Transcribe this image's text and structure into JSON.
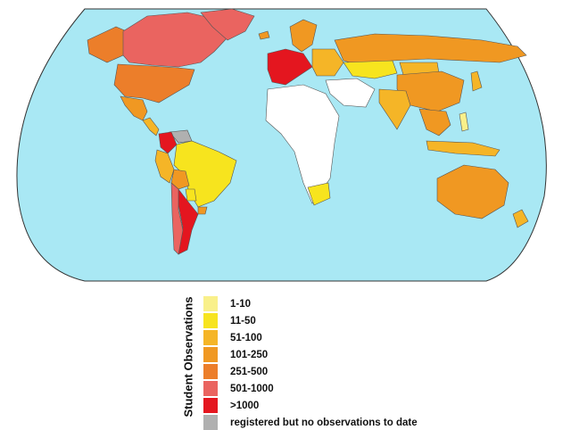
{
  "map": {
    "ocean_color": "#a9e8f4",
    "border_color": "#555555",
    "no_data_color": "#ffffff"
  },
  "legend": {
    "title": "Student Observations",
    "items": [
      {
        "label": "1-10",
        "color": "#f9f08a"
      },
      {
        "label": "11-50",
        "color": "#f7e41e"
      },
      {
        "label": "51-100",
        "color": "#f5b527"
      },
      {
        "label": "101-250",
        "color": "#f09822"
      },
      {
        "label": "251-500",
        "color": "#ec7e2a"
      },
      {
        "label": "501-1000",
        "color": "#ea6460"
      },
      {
        "label": ">1000",
        "color": "#e4161f"
      },
      {
        "label": "registered but no observations to date",
        "color": "#b0b0b0"
      }
    ]
  },
  "regions": [
    {
      "name": "Canada",
      "bin": "501-1000"
    },
    {
      "name": "Alaska",
      "bin": "251-500"
    },
    {
      "name": "United States",
      "bin": "251-500"
    },
    {
      "name": "Mexico",
      "bin": "101-250"
    },
    {
      "name": "Central America",
      "bin": "51-100"
    },
    {
      "name": "Colombia",
      "bin": ">1000"
    },
    {
      "name": "Venezuela",
      "bin": "registered but no observations to date"
    },
    {
      "name": "Ecuador / Peru",
      "bin": "51-100"
    },
    {
      "name": "Brazil",
      "bin": "11-50"
    },
    {
      "name": "Bolivia",
      "bin": "101-250"
    },
    {
      "name": "Paraguay",
      "bin": "11-50"
    },
    {
      "name": "Uruguay",
      "bin": "101-250"
    },
    {
      "name": "Argentina",
      "bin": ">1000"
    },
    {
      "name": "Chile",
      "bin": "501-1000"
    },
    {
      "name": "Greenland",
      "bin": "501-1000"
    },
    {
      "name": "Iceland",
      "bin": "101-250"
    },
    {
      "name": "Scandinavia",
      "bin": "101-250"
    },
    {
      "name": "Western Europe",
      "bin": ">1000"
    },
    {
      "name": "Eastern Europe",
      "bin": "51-100"
    },
    {
      "name": "Russia",
      "bin": "101-250"
    },
    {
      "name": "Kazakhstan",
      "bin": "11-50"
    },
    {
      "name": "Mongolia",
      "bin": "51-100"
    },
    {
      "name": "China",
      "bin": "101-250"
    },
    {
      "name": "Japan",
      "bin": "51-100"
    },
    {
      "name": "India",
      "bin": "51-100"
    },
    {
      "name": "Southeast Asia",
      "bin": "101-250"
    },
    {
      "name": "Indonesia",
      "bin": "51-100"
    },
    {
      "name": "Philippines",
      "bin": "1-10"
    },
    {
      "name": "Australia",
      "bin": "101-250"
    },
    {
      "name": "New Zealand",
      "bin": "51-100"
    },
    {
      "name": "South Africa",
      "bin": "11-50"
    },
    {
      "name": "Africa (other)",
      "bin": "none"
    },
    {
      "name": "Middle East",
      "bin": "none"
    }
  ]
}
